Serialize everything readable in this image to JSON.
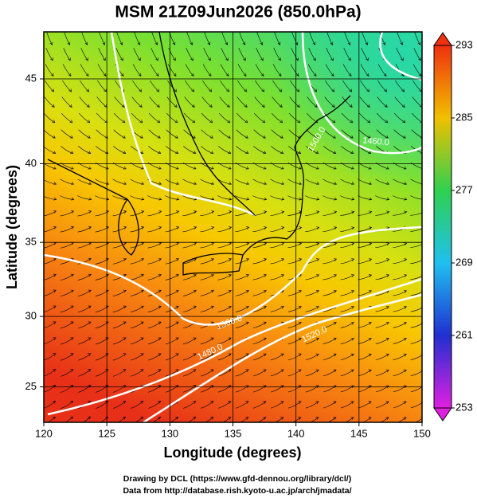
{
  "title": "MSM 21Z09Jun2026 (850.0hPa)",
  "map": {
    "projection": "mercator",
    "xlim": [
      120,
      150
    ],
    "ylim": [
      22.4,
      47.6
    ],
    "xticks": [
      120,
      125,
      130,
      135,
      140,
      145,
      150
    ],
    "yticks": [
      25,
      30,
      35,
      40,
      45
    ],
    "xlabel": "Longitude (degrees)",
    "ylabel": "Latitude  (degrees)",
    "grid": true,
    "contour_labels": [
      "1500.0",
      "1460.0",
      "1500.0",
      "1480.0",
      "1520.0"
    ]
  },
  "colorbar": {
    "lim": [
      253,
      293
    ],
    "ticks": [
      253,
      261,
      269,
      277,
      285,
      293
    ],
    "colors": [
      "#e020e0",
      "#2030d0",
      "#20c0f0",
      "#30d050",
      "#f0c000",
      "#f03010"
    ]
  },
  "credits": [
    "Drawing by DCL (https://www.gfd-dennou.org/library/dcl/)",
    "Data from http://database.rish.kyoto-u.ac.jp/arch/jmadata/"
  ]
}
